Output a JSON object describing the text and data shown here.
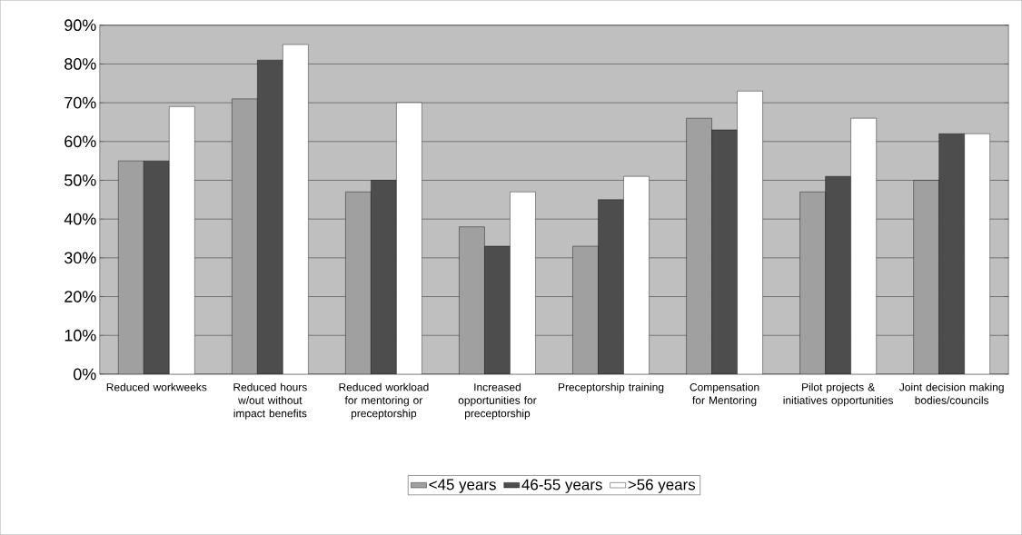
{
  "chart_data": {
    "type": "bar",
    "categories": [
      "Reduced workweeks",
      "Reduced hours w/out without impact benefits",
      "Reduced workload for mentoring or preceptorship",
      "Increased opportunities for preceptorship",
      "Preceptorship training",
      "Compensation for Mentoring",
      "Pilot projects & initiatives opportunities",
      "Joint decision making bodies/councils"
    ],
    "series": [
      {
        "name": "<45 years",
        "color": "#a0a0a0",
        "values": [
          55,
          71,
          47,
          38,
          33,
          66,
          47,
          50
        ]
      },
      {
        "name": "46-55 years",
        "color": "#4d4d4d",
        "values": [
          55,
          81,
          50,
          33,
          45,
          63,
          51,
          62
        ]
      },
      {
        "name": ">56 years",
        "color": "#ffffff",
        "values": [
          69,
          85,
          70,
          47,
          51,
          73,
          66,
          62
        ]
      }
    ],
    "ylim": [
      0,
      90
    ],
    "yticks": [
      {
        "value": 0,
        "label": "0%"
      },
      {
        "value": 10,
        "label": "10%"
      },
      {
        "value": 20,
        "label": "20%"
      },
      {
        "value": 30,
        "label": "30%"
      },
      {
        "value": 40,
        "label": "40%"
      },
      {
        "value": 50,
        "label": "50%"
      },
      {
        "value": 60,
        "label": "60%"
      },
      {
        "value": 70,
        "label": "70%"
      },
      {
        "value": 80,
        "label": "80%"
      },
      {
        "value": 90,
        "label": "90%"
      }
    ],
    "grid": "y",
    "legend": "bottom"
  }
}
